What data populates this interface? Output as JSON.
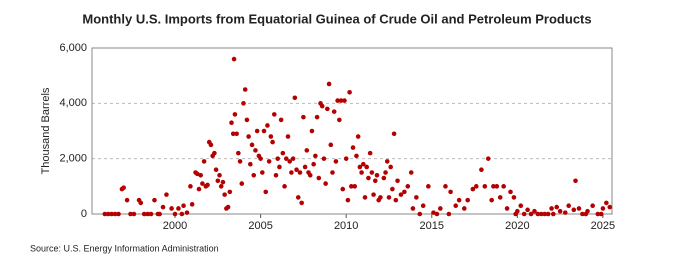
{
  "chart_data": {
    "type": "scatter",
    "title": "Monthly U.S. Imports from Equatorial Guinea of Crude Oil and Petroleum Products",
    "y_label": "Thousand Barrels",
    "source": "Source: U.S. Energy Information Administration",
    "series": [
      {
        "name": "Imports",
        "color": "#b40000",
        "x": [
          1995.9,
          1996.1,
          1996.3,
          1996.5,
          1996.7,
          1996.9,
          1997.0,
          1997.2,
          1997.4,
          1997.6,
          1997.9,
          1998.0,
          1998.2,
          1998.4,
          1998.6,
          1998.8,
          1999.0,
          1999.1,
          1999.3,
          1999.5,
          1999.8,
          2000.0,
          2000.2,
          2000.4,
          2000.5,
          2000.7,
          2000.9,
          2001.0,
          2001.2,
          2001.3,
          2001.4,
          2001.5,
          2001.6,
          2001.7,
          2001.8,
          2001.9,
          2002.0,
          2002.1,
          2002.2,
          2002.3,
          2002.4,
          2002.5,
          2002.6,
          2002.7,
          2002.8,
          2002.9,
          2003.0,
          2003.1,
          2003.2,
          2003.3,
          2003.4,
          2003.45,
          2003.5,
          2003.6,
          2003.7,
          2003.8,
          2003.9,
          2004.0,
          2004.1,
          2004.2,
          2004.3,
          2004.4,
          2004.5,
          2004.6,
          2004.7,
          2004.8,
          2004.9,
          2005.0,
          2005.1,
          2005.2,
          2005.3,
          2005.4,
          2005.5,
          2005.6,
          2005.7,
          2005.8,
          2005.9,
          2006.0,
          2006.1,
          2006.2,
          2006.3,
          2006.4,
          2006.5,
          2006.6,
          2006.7,
          2006.8,
          2006.9,
          2007.0,
          2007.1,
          2007.2,
          2007.3,
          2007.4,
          2007.5,
          2007.6,
          2007.7,
          2007.8,
          2007.9,
          2008.0,
          2008.1,
          2008.2,
          2008.3,
          2008.4,
          2008.5,
          2008.6,
          2008.7,
          2008.8,
          2008.9,
          2009.0,
          2009.1,
          2009.2,
          2009.3,
          2009.4,
          2009.5,
          2009.6,
          2009.7,
          2009.8,
          2009.9,
          2010.0,
          2010.1,
          2010.2,
          2010.3,
          2010.4,
          2010.5,
          2010.6,
          2010.7,
          2010.8,
          2010.9,
          2011.0,
          2011.1,
          2011.2,
          2011.3,
          2011.4,
          2011.5,
          2011.6,
          2011.7,
          2011.8,
          2011.9,
          2012.0,
          2012.2,
          2012.3,
          2012.4,
          2012.5,
          2012.6,
          2012.7,
          2012.8,
          2012.9,
          2013.0,
          2013.2,
          2013.4,
          2013.6,
          2013.8,
          2013.9,
          2014.1,
          2014.3,
          2014.5,
          2014.8,
          2015.1,
          2015.3,
          2015.5,
          2015.8,
          2016.0,
          2016.1,
          2016.4,
          2016.6,
          2016.9,
          2017.1,
          2017.4,
          2017.6,
          2017.9,
          2018.1,
          2018.3,
          2018.5,
          2018.6,
          2018.8,
          2019.0,
          2019.2,
          2019.4,
          2019.6,
          2019.8,
          2019.9,
          2020.0,
          2020.2,
          2020.4,
          2020.6,
          2020.8,
          2021.0,
          2021.2,
          2021.4,
          2021.6,
          2021.8,
          2022.0,
          2022.1,
          2022.3,
          2022.5,
          2022.8,
          2023.0,
          2023.3,
          2023.4,
          2023.6,
          2023.8,
          2024.0,
          2024.1,
          2024.4,
          2024.7,
          2024.9,
          2025.0,
          2025.2,
          2025.4
        ],
        "values": [
          0,
          0,
          0,
          0,
          0,
          900,
          950,
          500,
          0,
          0,
          500,
          400,
          0,
          0,
          0,
          500,
          0,
          0,
          250,
          700,
          200,
          0,
          200,
          0,
          300,
          50,
          1000,
          350,
          1500,
          1450,
          900,
          1400,
          1100,
          1900,
          1000,
          1050,
          2600,
          2500,
          2100,
          2200,
          1600,
          1200,
          1400,
          1000,
          1150,
          700,
          200,
          250,
          800,
          3300,
          2900,
          5600,
          3600,
          2900,
          2200,
          1900,
          1100,
          4000,
          4500,
          3400,
          2800,
          1800,
          2500,
          1400,
          2300,
          3000,
          2100,
          2000,
          1500,
          3000,
          800,
          3200,
          1900,
          2800,
          2600,
          3600,
          1400,
          2000,
          1700,
          3400,
          2200,
          1000,
          2000,
          2800,
          1900,
          1500,
          2000,
          4200,
          1600,
          600,
          1500,
          400,
          3500,
          1700,
          2300,
          1500,
          1400,
          3000,
          1800,
          2100,
          3500,
          1300,
          4000,
          3900,
          2000,
          1100,
          3800,
          4700,
          2500,
          1500,
          3700,
          1900,
          4100,
          3400,
          4100,
          900,
          4100,
          2000,
          500,
          4400,
          1000,
          2400,
          1000,
          2100,
          2800,
          1700,
          1500,
          1800,
          600,
          1700,
          1300,
          2200,
          1500,
          700,
          1200,
          1400,
          500,
          600,
          1300,
          1500,
          1900,
          600,
          1700,
          900,
          2900,
          500,
          1200,
          700,
          800,
          1000,
          1500,
          200,
          600,
          0,
          300,
          1000,
          50,
          0,
          200,
          1000,
          0,
          800,
          300,
          500,
          200,
          500,
          900,
          1000,
          1600,
          1000,
          2000,
          500,
          1000,
          1000,
          600,
          1000,
          200,
          800,
          600,
          0,
          100,
          300,
          0,
          150,
          0,
          100,
          0,
          0,
          0,
          0,
          200,
          0,
          250,
          100,
          50,
          300,
          150,
          1200,
          200,
          0,
          0,
          100,
          300,
          0,
          0,
          200,
          400,
          250
        ]
      }
    ],
    "xlim": [
      1995.15,
      2025.53
    ],
    "xticks": [
      2000,
      2005,
      2010,
      2015,
      2020,
      2025
    ],
    "ylim": [
      0,
      6000
    ],
    "yticks": [
      0,
      {
        "value": 2000,
        "label": "2,000"
      },
      {
        "value": 4000,
        "label": "4,000"
      },
      {
        "value": 6000,
        "label": "6,000"
      }
    ],
    "grid": true
  }
}
